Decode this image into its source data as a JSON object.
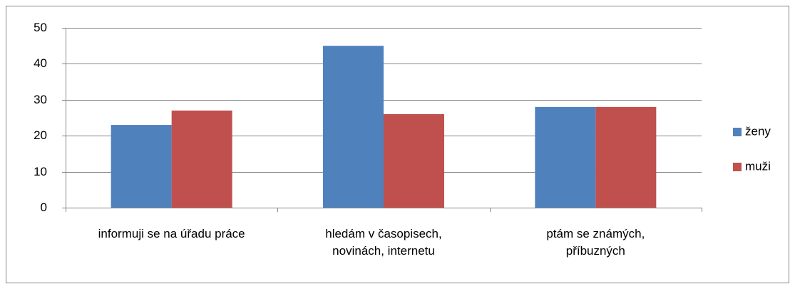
{
  "chart_data": {
    "type": "bar",
    "categories": [
      "informuji se na úřadu práce",
      "hledám v časopisech, novinách, internetu",
      "ptám se známých, příbuzných"
    ],
    "series": [
      {
        "name": "ženy",
        "color": "#4f81bd",
        "values": [
          23,
          45,
          28
        ]
      },
      {
        "name": "muži",
        "color": "#c0504d",
        "values": [
          27,
          26,
          28
        ]
      }
    ],
    "ylim": [
      0,
      50
    ],
    "yticks": [
      0,
      10,
      20,
      30,
      40,
      50
    ],
    "grid": true,
    "legend": "right"
  }
}
